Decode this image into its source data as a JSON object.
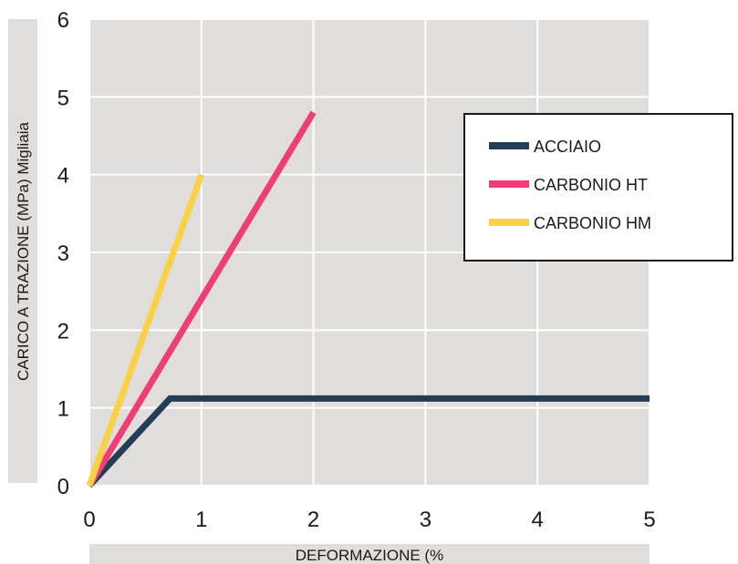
{
  "chart_data": {
    "type": "line",
    "xlabel": "DEFORMAZIONE (%",
    "ylabel": "CARICO A TRAZIONE (MPa) Migliaia",
    "xlim": [
      0,
      5
    ],
    "ylim": [
      0,
      6
    ],
    "x_ticks": [
      "0",
      "1",
      "2",
      "3",
      "4",
      "5"
    ],
    "y_ticks": [
      "0",
      "1",
      "2",
      "3",
      "4",
      "5",
      "6"
    ],
    "grid": true,
    "legend_position": "top-right",
    "series": [
      {
        "name": "ACCIAIO",
        "color": "#253d55",
        "points": [
          [
            0,
            0
          ],
          [
            0.72,
            1.12
          ],
          [
            5,
            1.12
          ]
        ]
      },
      {
        "name": "CARBONIO HT",
        "color": "#ee3e75",
        "points": [
          [
            0,
            0
          ],
          [
            2,
            4.8
          ]
        ]
      },
      {
        "name": "CARBONIO HM",
        "color": "#fbd044",
        "points": [
          [
            0,
            0
          ],
          [
            1,
            4
          ]
        ]
      }
    ]
  }
}
